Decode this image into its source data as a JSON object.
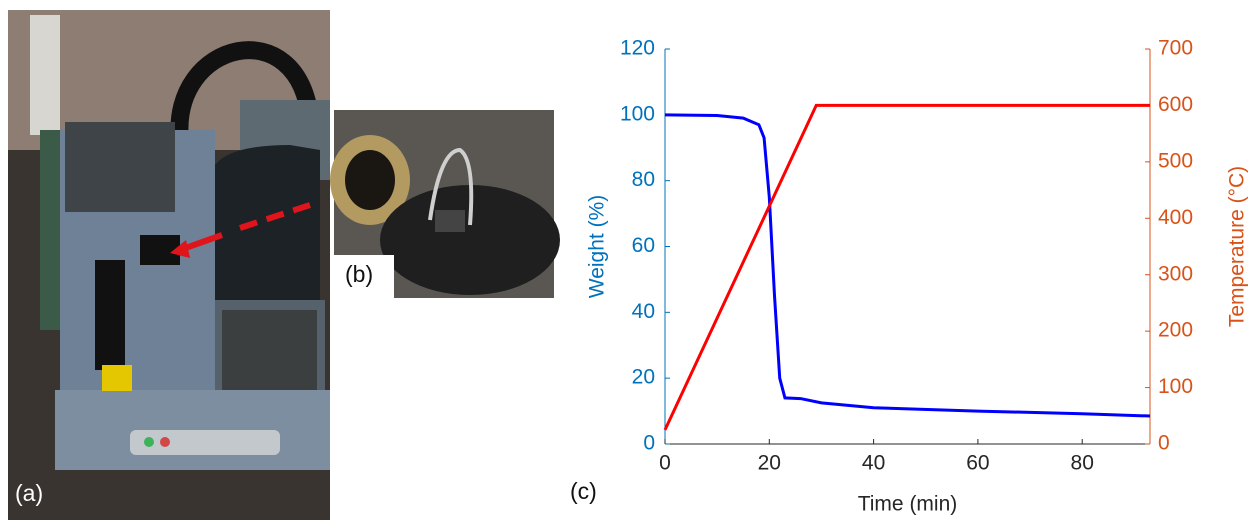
{
  "chart_data": {
    "type": "line",
    "panel_labels": [
      "(a)",
      "(b)",
      "(c)"
    ],
    "xlabel": "Time (min)",
    "ylabel": "Weight (%)",
    "y2label": "Temperature (°C)",
    "xlim": [
      0,
      93
    ],
    "xticks": [
      0,
      20,
      40,
      60,
      80
    ],
    "ylim": [
      0,
      120
    ],
    "yticks": [
      0,
      20,
      40,
      60,
      80,
      100,
      120
    ],
    "y2lim": [
      0,
      700
    ],
    "y2ticks": [
      0,
      100,
      200,
      300,
      400,
      500,
      600,
      700
    ],
    "y_color": "#0072bd",
    "y2_color": "#d95319",
    "series": [
      {
        "color": "#0000ff",
        "x": [
          0,
          10,
          15,
          18,
          19,
          20,
          21,
          22,
          23,
          26,
          30,
          40,
          60,
          80,
          93
        ],
        "values": [
          100,
          99.8,
          99,
          97,
          93,
          75,
          45,
          20,
          14,
          13.8,
          12.5,
          11,
          10,
          9.2,
          8.5
        ]
      },
      {
        "color": "#ff0000",
        "axis": "y2",
        "x": [
          0,
          29,
          30,
          93
        ],
        "values": [
          25,
          600,
          600,
          600
        ]
      }
    ]
  }
}
